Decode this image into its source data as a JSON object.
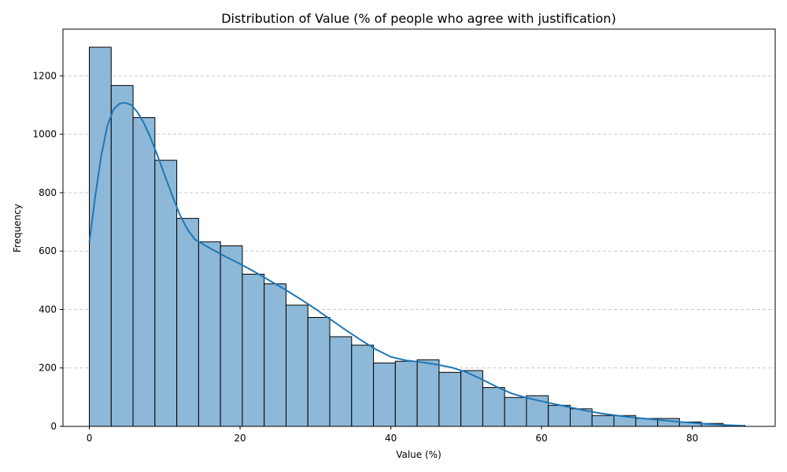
{
  "chart_data": {
    "type": "bar",
    "title": "Distribution of Value (% of people who agree with justification)",
    "xlabel": "Value (%)",
    "ylabel": "Frequency",
    "xlim": [
      -3.5,
      91
    ],
    "ylim": [
      0,
      1360
    ],
    "x_ticks": [
      0,
      20,
      40,
      60,
      80
    ],
    "y_ticks": [
      0,
      200,
      400,
      600,
      800,
      1000,
      1200
    ],
    "grid": "y-dashed",
    "bar_color": "#8db8d8",
    "edge_color": "#000000",
    "kde_color": "#1f77b4",
    "bins": {
      "start": 0,
      "width": 2.9,
      "values": [
        1298,
        1167,
        1057,
        911,
        712,
        632,
        618,
        521,
        488,
        415,
        373,
        307,
        278,
        217,
        223,
        228,
        185,
        191,
        133,
        99,
        105,
        72,
        60,
        37,
        37,
        27,
        27,
        15,
        10,
        3
      ]
    },
    "kde": {
      "x": [
        0,
        0.8,
        1.6,
        2.4,
        3.2,
        4.0,
        4.8,
        5.6,
        6.4,
        7.2,
        8.0,
        9.0,
        10.0,
        11.0,
        12.0,
        13.0,
        14.0,
        16.0,
        18.0,
        20.0,
        22.0,
        24.0,
        26.0,
        28.0,
        30.0,
        32.0,
        34.0,
        36.0,
        38.0,
        40.0,
        42.0,
        44.0,
        46.0,
        48.0,
        50.0,
        52.0,
        54.0,
        56.0,
        58.0,
        60.0,
        62.0,
        64.0,
        66.0,
        68.0,
        70.0,
        72.0,
        74.0,
        76.0,
        78.0,
        80.0,
        82.0,
        84.0,
        86.9
      ],
      "y": [
        630,
        790,
        930,
        1030,
        1085,
        1105,
        1108,
        1100,
        1075,
        1040,
        995,
        930,
        860,
        790,
        725,
        675,
        640,
        610,
        582,
        556,
        528,
        498,
        468,
        436,
        402,
        366,
        330,
        296,
        264,
        238,
        226,
        220,
        212,
        202,
        186,
        162,
        136,
        113,
        98,
        86,
        75,
        64,
        53,
        44,
        37,
        31,
        26,
        21,
        16,
        12,
        8,
        5,
        2
      ]
    }
  }
}
